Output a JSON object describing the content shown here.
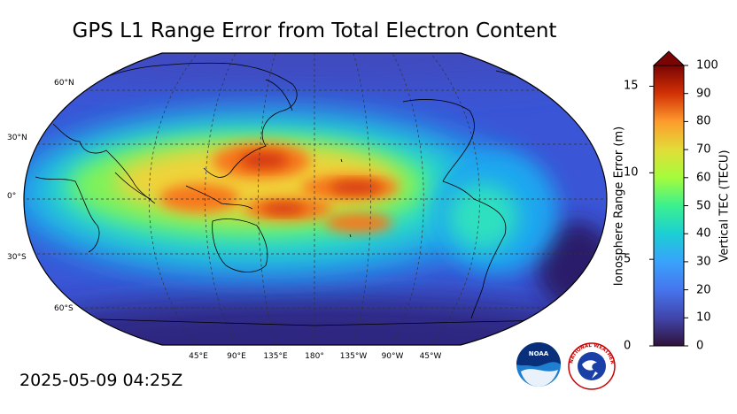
{
  "title": "GPS L1 Range Error from Total Electron Content",
  "timestamp": "2025-05-09 04:25Z",
  "map": {
    "latitude_labels": [
      "60°N",
      "30°N",
      "0°",
      "30°S",
      "60°S"
    ],
    "longitude_labels": [
      "45°E",
      "90°E",
      "135°E",
      "180°",
      "135°W",
      "90°W",
      "45°W"
    ],
    "ocean_low_color": "#30208a",
    "field_colors": [
      "#2a1f6b",
      "#3a55d6",
      "#1aa6f0",
      "#2fe0c0",
      "#7ff25a",
      "#f0d33a",
      "#f7781e",
      "#d2340e"
    ]
  },
  "colorbar": {
    "left_label": "Ionosphere Range Error (m)",
    "right_label": "Vertical TEC (TECU)",
    "left_ticks": [
      "0",
      "5",
      "10",
      "15"
    ],
    "left_tick_values": [
      0,
      5,
      10,
      15
    ],
    "right_ticks": [
      "0",
      "10",
      "20",
      "30",
      "40",
      "50",
      "60",
      "70",
      "80",
      "90",
      "100"
    ],
    "right_tick_values": [
      0,
      10,
      20,
      30,
      40,
      50,
      60,
      70,
      80,
      90,
      100
    ],
    "range_tecu": [
      0,
      100
    ],
    "extend": "max",
    "colormap": "turbo"
  },
  "logos": {
    "noaa_text": "NOAA",
    "nws_text": "NATIONAL WEATHER SERVICE"
  }
}
